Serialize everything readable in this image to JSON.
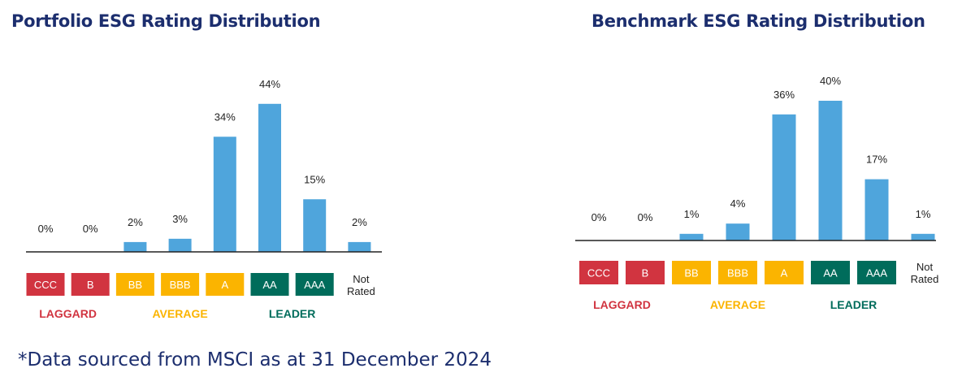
{
  "colors": {
    "bar": "#4fa5dc",
    "laggard": "#d13440",
    "average": "#fbb400",
    "leader": "#006c5b",
    "title": "#1c2e6e"
  },
  "rating_boxes": [
    {
      "label": "CCC",
      "group": "laggard"
    },
    {
      "label": "B",
      "group": "laggard"
    },
    {
      "label": "BB",
      "group": "average"
    },
    {
      "label": "BBB",
      "group": "average"
    },
    {
      "label": "A",
      "group": "average"
    },
    {
      "label": "AA",
      "group": "leader"
    },
    {
      "label": "AAA",
      "group": "leader"
    },
    {
      "label": "Not\nRated",
      "group": "none"
    }
  ],
  "group_labels": {
    "laggard": "LAGGARD",
    "average": "AVERAGE",
    "leader": "LEADER"
  },
  "chart_data": [
    {
      "type": "bar",
      "title": "Portfolio ESG Rating Distribution",
      "categories": [
        "CCC",
        "B",
        "BB",
        "BBB",
        "A",
        "AA",
        "AAA",
        "Not Rated"
      ],
      "values": [
        0,
        0,
        2,
        3,
        34,
        44,
        15,
        2
      ],
      "value_labels": [
        "0%",
        "0%",
        "2%",
        "3%",
        "34%",
        "44%",
        "15%",
        "2%"
      ],
      "ylim": [
        0,
        44
      ],
      "grid": false
    },
    {
      "type": "bar",
      "title": "Benchmark ESG Rating Distribution",
      "categories": [
        "CCC",
        "B",
        "BB",
        "BBB",
        "A",
        "AA",
        "AAA",
        "Not Rated"
      ],
      "values": [
        0,
        0,
        1,
        4,
        36,
        40,
        17,
        1
      ],
      "value_labels": [
        "0%",
        "0%",
        "1%",
        "4%",
        "36%",
        "40%",
        "17%",
        "1%"
      ],
      "ylim": [
        0,
        40
      ],
      "grid": false
    }
  ],
  "footnote": "*Data sourced from MSCI as at 31 December 2024"
}
